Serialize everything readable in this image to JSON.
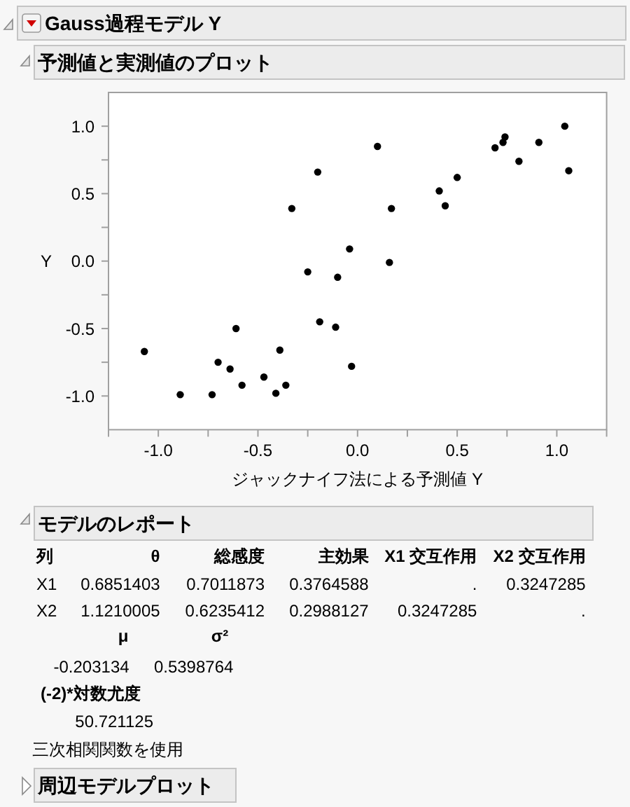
{
  "chart_data": {
    "type": "scatter",
    "title": "Gauss過程モデル Y",
    "subtitle": "予測値と実測値のプロット",
    "xlabel": "ジャックナイフ法による予測値 Y",
    "ylabel": "Y",
    "x": [
      -1.07,
      -0.89,
      -0.73,
      -0.7,
      -0.64,
      -0.61,
      -0.58,
      -0.47,
      -0.41,
      -0.39,
      -0.36,
      -0.33,
      -0.25,
      -0.2,
      -0.19,
      -0.1,
      -0.11,
      -0.04,
      -0.03,
      0.1,
      0.17,
      0.16,
      0.41,
      0.44,
      0.5,
      0.69,
      0.73,
      0.74,
      0.81,
      0.91,
      1.04,
      1.06
    ],
    "series": [
      {
        "color": "#000000",
        "values": [
          -0.67,
          -0.99,
          -0.99,
          -0.75,
          -0.8,
          -0.5,
          -0.92,
          -0.86,
          -0.98,
          -0.66,
          -0.92,
          0.39,
          -0.08,
          0.66,
          -0.45,
          -0.12,
          -0.49,
          0.09,
          -0.78,
          0.85,
          0.39,
          -0.01,
          0.52,
          0.41,
          0.62,
          0.84,
          0.88,
          0.92,
          0.74,
          0.88,
          1.0,
          0.67
        ]
      }
    ],
    "marker": "circle",
    "xlim": [
      -1.25,
      1.25
    ],
    "ylim": [
      -1.25,
      1.25
    ],
    "xticks": [
      {
        "value": -1.25,
        "label": null
      },
      {
        "value": -1,
        "label": "-1.0"
      },
      {
        "value": -0.75,
        "label": null
      },
      {
        "value": -0.5,
        "label": "-0.5"
      },
      {
        "value": -0.25,
        "label": null
      },
      {
        "value": 0,
        "label": "0.0"
      },
      {
        "value": 0.25,
        "label": null
      },
      {
        "value": 0.5,
        "label": "0.5"
      },
      {
        "value": 0.75,
        "label": null
      },
      {
        "value": 1,
        "label": "1.0"
      },
      {
        "value": 1.25,
        "label": null
      }
    ],
    "yticks": [
      {
        "value": -1,
        "label": "-1.0"
      },
      {
        "value": -0.75,
        "label": null
      },
      {
        "value": -0.5,
        "label": "-0.5"
      },
      {
        "value": -0.25,
        "label": null
      },
      {
        "value": 0,
        "label": "0.0"
      },
      {
        "value": 0.25,
        "label": null
      },
      {
        "value": 0.5,
        "label": "0.5"
      },
      {
        "value": 0.75,
        "label": null
      },
      {
        "value": 1,
        "label": "1.0"
      }
    ],
    "annotations": [
      "モデルのレポート",
      "列",
      "θ",
      "総感度",
      "主効果",
      "X1 交互作用",
      "X2 交互作用",
      "X1",
      "0.6851403",
      "0.7011873",
      "0.3764588",
      ".",
      "0.3247285",
      "X2",
      "1.1210005",
      "0.6235412",
      "0.2988127",
      "0.3247285",
      ".",
      "μ",
      "σ²",
      "-0.203134",
      "0.5398764",
      "(-2)*対数尤度",
      "50.721125",
      "三次相関関数を使用",
      "周辺モデルプロット"
    ]
  }
}
